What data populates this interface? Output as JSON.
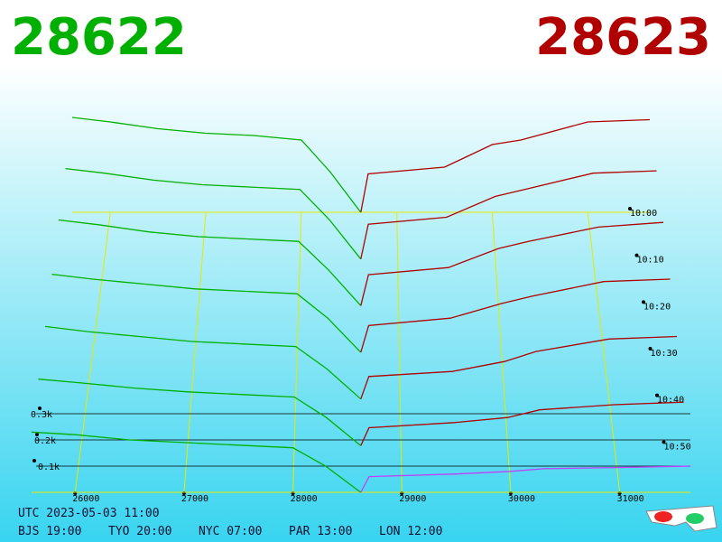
{
  "chart_data": {
    "type": "depth3d",
    "bid_title": "28622",
    "ask_title": "28623",
    "bid_color": "#00b000",
    "ask_color": "#b00000",
    "front_ask_color": "#c040ff",
    "xlim": [
      25600,
      31650
    ],
    "xticks": [
      26000,
      27000,
      28000,
      29000,
      30000,
      31000
    ],
    "yticks": [
      {
        "value": 100,
        "label": "0.1k"
      },
      {
        "value": 200,
        "label": "0.2k"
      },
      {
        "value": 300,
        "label": "0.3k"
      }
    ],
    "bid_prices": [
      25600,
      26000,
      26500,
      27000,
      27500,
      28000,
      28300,
      28622
    ],
    "ask_prices": [
      28623,
      28700,
      29500,
      30000,
      30300,
      31000,
      31650
    ],
    "snapshots": [
      {
        "time": "10:00",
        "bid": [
          420,
          400,
          370,
          350,
          340,
          320,
          180,
          0
        ],
        "ask": [
          0,
          170,
          200,
          300,
          320,
          400,
          410
        ]
      },
      {
        "time": "10:10",
        "bid": [
          390,
          370,
          340,
          320,
          310,
          300,
          170,
          0
        ],
        "ask": [
          0,
          150,
          180,
          270,
          300,
          370,
          380
        ]
      },
      {
        "time": "10:20",
        "bid": [
          360,
          340,
          310,
          290,
          280,
          270,
          150,
          0
        ],
        "ask": [
          0,
          130,
          160,
          240,
          270,
          330,
          350
        ]
      },
      {
        "time": "10:30",
        "bid": [
          320,
          300,
          280,
          260,
          250,
          240,
          140,
          0
        ],
        "ask": [
          0,
          110,
          140,
          200,
          230,
          290,
          300
        ]
      },
      {
        "time": "10:40",
        "bid": [
          290,
          270,
          250,
          230,
          220,
          210,
          120,
          0
        ],
        "ask": [
          0,
          90,
          110,
          150,
          190,
          240,
          250
        ]
      },
      {
        "time": "10:50",
        "bid": [
          260,
          245,
          225,
          210,
          200,
          190,
          110,
          0
        ],
        "ask": [
          0,
          70,
          90,
          110,
          140,
          160,
          170
        ]
      },
      {
        "time": null,
        "bid": [
          230,
          220,
          200,
          190,
          180,
          170,
          100,
          0
        ],
        "ask": [
          0,
          60,
          70,
          80,
          90,
          95,
          100
        ]
      }
    ],
    "footer": [
      "UTC 2023-05-03 11:00",
      "BJS 19:00",
      "TYO 20:00",
      "NYC 07:00",
      "PAR 13:00",
      "LON 12:00"
    ]
  }
}
